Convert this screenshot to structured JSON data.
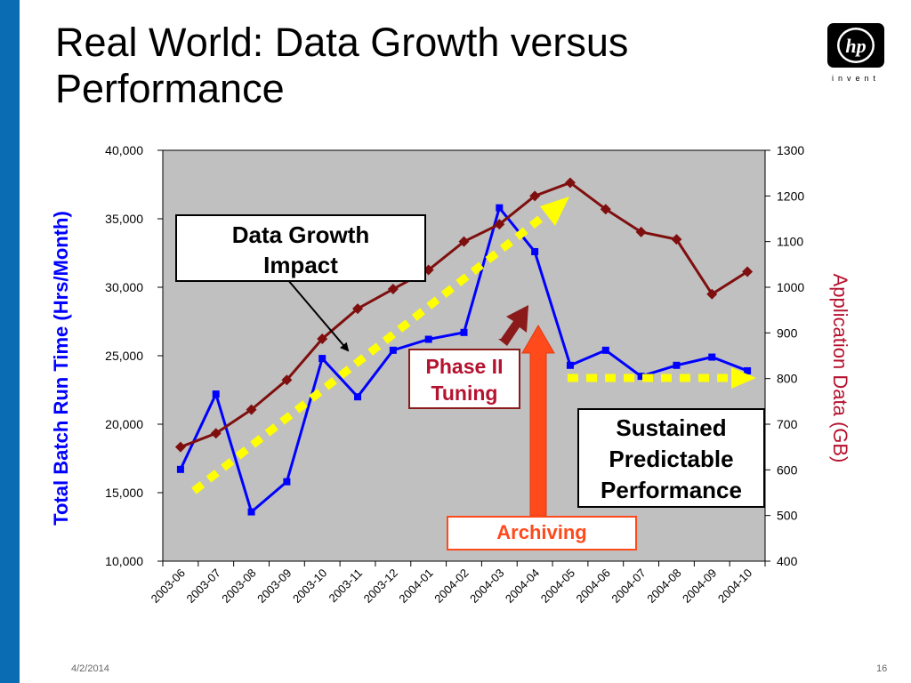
{
  "slide": {
    "title_line1": "Real World: Data Growth versus",
    "title_line2": "Performance",
    "logo_text": "invent",
    "footer_date": "4/2/2014",
    "page_number": "16"
  },
  "callouts": {
    "data_growth": [
      "Data Growth",
      "Impact"
    ],
    "phase2": [
      "Phase II",
      "Tuning"
    ],
    "sustained": [
      "Sustained",
      "Predictable",
      "Performance"
    ],
    "archiving": "Archiving"
  },
  "colors": {
    "accent_blue": "#0a6db4",
    "batch_series": "#0000ff",
    "app_series": "#7f0f0f",
    "plot_bg": "#c0c0c0",
    "trend_arrow": "#ffff00",
    "archiving": "#ff4a1c",
    "tuning_arrow": "#8b1a1a"
  },
  "chart_data": {
    "type": "line",
    "categories": [
      "2003-06",
      "2003-07",
      "2003-08",
      "2003-09",
      "2003-10",
      "2003-11",
      "2003-12",
      "2004-01",
      "2004-02",
      "2004-03",
      "2004-04",
      "2004-05",
      "2004-06",
      "2004-07",
      "2004-08",
      "2004-09",
      "2004-10"
    ],
    "series": [
      {
        "axis": "left",
        "color": "#0000ff",
        "marker": "square",
        "values": [
          16700,
          22200,
          13600,
          15800,
          24800,
          22000,
          25400,
          26200,
          26700,
          35800,
          32600,
          24300,
          25400,
          23500,
          24300,
          24900,
          23900
        ]
      },
      {
        "axis": "right",
        "color": "#7f0f0f",
        "marker": "diamond",
        "values": [
          650,
          680,
          732,
          797,
          887,
          953,
          996,
          1038,
          1100,
          1138,
          1200,
          1229,
          1171,
          1121,
          1105,
          985,
          1034
        ]
      }
    ],
    "ylabel": "Total Batch Run Time (Hrs/Month)",
    "ylabel_right": "Application Data (GB)",
    "ylim": [
      10000,
      40000
    ],
    "yticks": [
      "10,000",
      "15,000",
      "20,000",
      "25,000",
      "30,000",
      "35,000",
      "40,000"
    ],
    "ylim_right": [
      400,
      1300
    ],
    "yticks_right": [
      "400",
      "500",
      "600",
      "700",
      "800",
      "900",
      "1000",
      "1100",
      "1200",
      "1300"
    ],
    "grid": false,
    "legend": "none"
  }
}
